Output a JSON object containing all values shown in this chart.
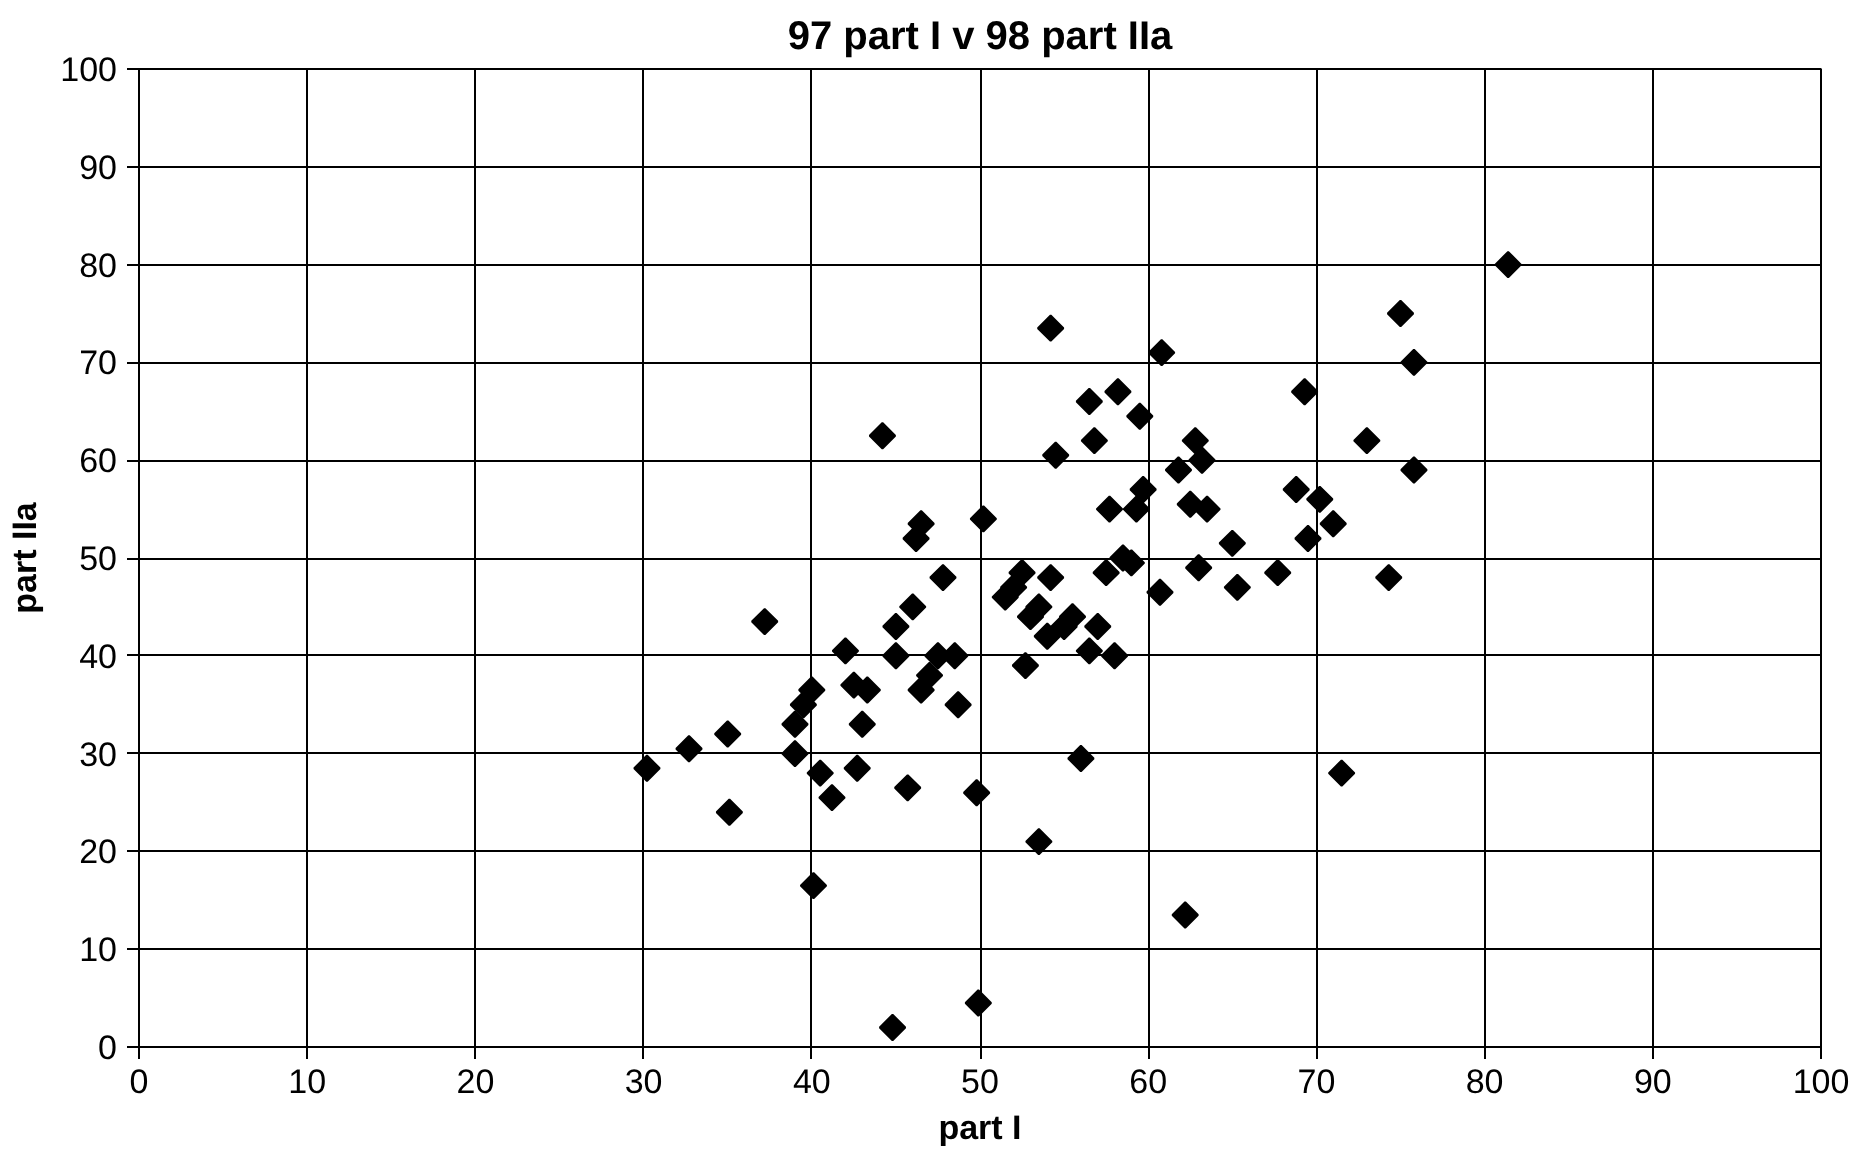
{
  "chart_data": {
    "type": "scatter",
    "title": "97 part I v 98 part IIa",
    "xlabel": "part I",
    "ylabel": "part IIa",
    "xlim": [
      0,
      100
    ],
    "ylim": [
      0,
      100
    ],
    "xticks": [
      0,
      10,
      20,
      30,
      40,
      50,
      60,
      70,
      80,
      90,
      100
    ],
    "yticks": [
      0,
      10,
      20,
      30,
      40,
      50,
      60,
      70,
      80,
      90,
      100
    ],
    "grid": true,
    "marker": "diamond",
    "series": [
      {
        "color": "#000000",
        "x": [
          30.2,
          32.7,
          35,
          35.1,
          37.2,
          39,
          39,
          39.5,
          40,
          40.1,
          40.5,
          41.2,
          42,
          42.5,
          42.7,
          43,
          43.3,
          44.2,
          44.8,
          45,
          45,
          45.7,
          46,
          46.2,
          46.5,
          46.5,
          47,
          47.5,
          47.8,
          48.5,
          48.7,
          49.8,
          49.9,
          50.2,
          51.5,
          52,
          52.5,
          52.7,
          53,
          53.5,
          53.5,
          54,
          54.2,
          54.2,
          54.5,
          55,
          55.5,
          56,
          56.5,
          56.5,
          56.8,
          57,
          57.5,
          57.7,
          58,
          58.2,
          58.5,
          59,
          59.3,
          59.5,
          59.7,
          60.7,
          60.8,
          61.8,
          62.2,
          62.5,
          62.8,
          63,
          63.2,
          63.5,
          65,
          65.3,
          67.7,
          68.8,
          69.3,
          69.5,
          70.2,
          71,
          71.5,
          73,
          74.3,
          75,
          75.8,
          75.8,
          81.4
        ],
        "values": [
          28.5,
          30.5,
          32,
          24,
          43.5,
          30,
          33,
          35,
          36.5,
          16.5,
          28,
          25.5,
          40.5,
          37,
          28.5,
          33,
          36.5,
          62.5,
          2,
          40,
          43,
          26.5,
          45,
          52,
          53.5,
          36.5,
          38,
          40,
          48,
          40,
          35,
          26,
          4.5,
          54,
          46,
          47,
          48.5,
          39,
          44,
          21,
          45,
          42,
          48,
          73.5,
          60.5,
          43,
          44,
          29.5,
          40.5,
          66,
          62,
          43,
          48.5,
          55,
          40,
          67,
          50,
          49.5,
          55,
          64.5,
          57,
          46.5,
          71,
          59,
          13.5,
          55.5,
          62,
          49,
          60,
          55,
          51.5,
          47,
          48.5,
          57,
          67,
          52,
          56,
          53.5,
          28,
          62,
          48,
          75,
          70,
          59,
          80
        ]
      }
    ]
  }
}
